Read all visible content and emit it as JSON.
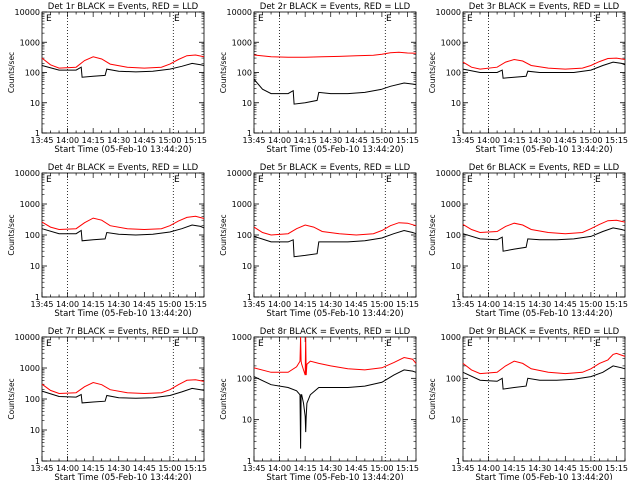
{
  "chart_data": [
    {
      "type": "line",
      "title": "Det 1r BLACK = Events, RED = LLD",
      "xlabel": "Start Time (05-Feb-10 13:44:20)",
      "ylabel": "Counts/sec",
      "x_units": "minutes from 13:45",
      "xlim": [
        0,
        95
      ],
      "ylim": [
        1,
        10000
      ],
      "yscale": "log",
      "x_tick_labels": [
        "13:45",
        "14:00",
        "14:15",
        "14:30",
        "14:45",
        "15:00",
        "15:15"
      ],
      "y_tick_labels": [
        "1",
        "10",
        "100",
        "1000",
        "10000"
      ],
      "flag_label": "E",
      "vlines_min": [
        15,
        77
      ],
      "series": [
        {
          "color": "#000000",
          "x": [
            0,
            10,
            20,
            23,
            23.5,
            30,
            37,
            38,
            45,
            55,
            65,
            75,
            82,
            88,
            93,
            95
          ],
          "y": [
            170,
            120,
            120,
            150,
            70,
            75,
            80,
            130,
            110,
            105,
            110,
            130,
            160,
            200,
            180,
            170
          ]
        },
        {
          "color": "#ff0000",
          "x": [
            0,
            5,
            10,
            20,
            25,
            30,
            35,
            40,
            50,
            60,
            70,
            75,
            80,
            85,
            90,
            95
          ],
          "y": [
            300,
            180,
            140,
            150,
            250,
            330,
            280,
            190,
            150,
            140,
            150,
            190,
            270,
            360,
            380,
            330
          ]
        }
      ]
    },
    {
      "type": "line",
      "title": "Det 2r BLACK = Events, RED = LLD",
      "xlabel": "Start Time (05-Feb-10 13:44:20)",
      "ylabel": "Counts/sec",
      "x_units": "minutes from 13:45",
      "xlim": [
        0,
        95
      ],
      "ylim": [
        1,
        10000
      ],
      "yscale": "log",
      "x_tick_labels": [
        "13:45",
        "14:00",
        "14:15",
        "14:30",
        "14:45",
        "15:00",
        "15:15"
      ],
      "y_tick_labels": [
        "1",
        "10",
        "100",
        "1000",
        "10000"
      ],
      "flag_label": "E",
      "vlines_min": [
        15,
        77
      ],
      "series": [
        {
          "color": "#000000",
          "x": [
            0,
            5,
            10,
            20,
            23,
            23.5,
            30,
            37,
            38,
            45,
            55,
            65,
            75,
            80,
            88,
            95
          ],
          "y": [
            60,
            28,
            20,
            20,
            25,
            9,
            10,
            12,
            22,
            20,
            20,
            22,
            28,
            35,
            45,
            40
          ]
        },
        {
          "color": "#ff0000",
          "x": [
            0,
            10,
            20,
            30,
            40,
            50,
            60,
            70,
            75,
            80,
            85,
            90,
            95
          ],
          "y": [
            380,
            330,
            320,
            320,
            330,
            340,
            360,
            370,
            400,
            450,
            470,
            440,
            430
          ]
        }
      ]
    },
    {
      "type": "line",
      "title": "Det 3r BLACK = Events, RED = LLD",
      "xlabel": "Start Time (05-Feb-10 13:44:20)",
      "ylabel": "Counts/sec",
      "x_units": "minutes from 13:45",
      "xlim": [
        0,
        95
      ],
      "ylim": [
        1,
        10000
      ],
      "yscale": "log",
      "x_tick_labels": [
        "13:45",
        "14:00",
        "14:15",
        "14:30",
        "14:45",
        "15:00",
        "15:15"
      ],
      "y_tick_labels": [
        "1",
        "10",
        "100",
        "1000",
        "10000"
      ],
      "flag_label": "E",
      "vlines_min": [
        15,
        77
      ],
      "series": [
        {
          "color": "#000000",
          "x": [
            0,
            10,
            20,
            23,
            23.5,
            30,
            37,
            38,
            45,
            55,
            65,
            75,
            82,
            88,
            93,
            95
          ],
          "y": [
            130,
            100,
            100,
            120,
            65,
            70,
            75,
            110,
            100,
            100,
            100,
            120,
            170,
            220,
            200,
            180
          ]
        },
        {
          "color": "#ff0000",
          "x": [
            0,
            5,
            10,
            20,
            25,
            30,
            35,
            40,
            50,
            60,
            70,
            75,
            80,
            85,
            90,
            95
          ],
          "y": [
            220,
            150,
            130,
            150,
            220,
            270,
            240,
            170,
            140,
            130,
            140,
            170,
            230,
            290,
            300,
            270
          ]
        }
      ]
    },
    {
      "type": "line",
      "title": "Det 4r BLACK = Events, RED = LLD",
      "xlabel": "Start Time (05-Feb-10 13:44:20)",
      "ylabel": "Counts/sec",
      "x_units": "minutes from 13:45",
      "xlim": [
        0,
        95
      ],
      "ylim": [
        1,
        10000
      ],
      "yscale": "log",
      "x_tick_labels": [
        "13:45",
        "14:00",
        "14:15",
        "14:30",
        "14:45",
        "15:00",
        "15:15"
      ],
      "y_tick_labels": [
        "1",
        "10",
        "100",
        "1000",
        "10000"
      ],
      "flag_label": "E",
      "vlines_min": [
        15,
        77
      ],
      "series": [
        {
          "color": "#000000",
          "x": [
            0,
            10,
            20,
            23,
            23.5,
            30,
            37,
            38,
            45,
            55,
            65,
            75,
            82,
            88,
            93,
            95
          ],
          "y": [
            160,
            110,
            110,
            140,
            65,
            70,
            75,
            120,
            105,
            100,
            105,
            125,
            160,
            210,
            190,
            170
          ]
        },
        {
          "color": "#ff0000",
          "x": [
            0,
            5,
            10,
            20,
            25,
            30,
            35,
            40,
            50,
            60,
            70,
            75,
            80,
            85,
            90,
            95
          ],
          "y": [
            260,
            180,
            150,
            160,
            250,
            350,
            300,
            200,
            160,
            150,
            160,
            200,
            280,
            370,
            400,
            340
          ]
        }
      ]
    },
    {
      "type": "line",
      "title": "Det 5r BLACK = Events, RED = LLD",
      "xlabel": "Start Time (05-Feb-10 13:44:20)",
      "ylabel": "Counts/sec",
      "x_units": "minutes from 13:45",
      "xlim": [
        0,
        95
      ],
      "ylim": [
        1,
        10000
      ],
      "yscale": "log",
      "x_tick_labels": [
        "13:45",
        "14:00",
        "14:15",
        "14:30",
        "14:45",
        "15:00",
        "15:15"
      ],
      "y_tick_labels": [
        "1",
        "10",
        "100",
        "1000",
        "10000"
      ],
      "flag_label": "E",
      "vlines_min": [
        15,
        77
      ],
      "series": [
        {
          "color": "#000000",
          "x": [
            0,
            10,
            20,
            23,
            23.5,
            30,
            37,
            38,
            45,
            55,
            65,
            75,
            82,
            88,
            93,
            95
          ],
          "y": [
            90,
            60,
            60,
            70,
            20,
            22,
            25,
            60,
            60,
            60,
            65,
            80,
            110,
            140,
            120,
            110
          ]
        },
        {
          "color": "#ff0000",
          "x": [
            0,
            5,
            10,
            20,
            25,
            30,
            35,
            40,
            50,
            60,
            70,
            75,
            80,
            85,
            90,
            95
          ],
          "y": [
            180,
            120,
            100,
            110,
            160,
            210,
            180,
            130,
            110,
            100,
            110,
            140,
            200,
            250,
            240,
            200
          ]
        }
      ]
    },
    {
      "type": "line",
      "title": "Det 6r BLACK = Events, RED = LLD",
      "xlabel": "Start Time (05-Feb-10 13:44:20)",
      "ylabel": "Counts/sec",
      "x_units": "minutes from 13:45",
      "xlim": [
        0,
        95
      ],
      "ylim": [
        1,
        10000
      ],
      "yscale": "log",
      "x_tick_labels": [
        "13:45",
        "14:00",
        "14:15",
        "14:30",
        "14:45",
        "15:00",
        "15:15"
      ],
      "y_tick_labels": [
        "1",
        "10",
        "100",
        "1000",
        "10000"
      ],
      "flag_label": "E",
      "vlines_min": [
        15,
        77
      ],
      "series": [
        {
          "color": "#000000",
          "x": [
            0,
            10,
            20,
            23,
            23.5,
            30,
            37,
            38,
            45,
            55,
            65,
            75,
            82,
            88,
            93,
            95
          ],
          "y": [
            110,
            75,
            70,
            85,
            30,
            35,
            40,
            75,
            70,
            70,
            75,
            90,
            130,
            170,
            150,
            140
          ]
        },
        {
          "color": "#ff0000",
          "x": [
            0,
            5,
            10,
            20,
            25,
            30,
            35,
            40,
            50,
            60,
            70,
            75,
            80,
            85,
            90,
            95
          ],
          "y": [
            220,
            150,
            120,
            130,
            190,
            240,
            210,
            150,
            120,
            110,
            120,
            160,
            220,
            290,
            300,
            260
          ]
        }
      ]
    },
    {
      "type": "line",
      "title": "Det 7r BLACK = Events, RED = LLD",
      "xlabel": "Start Time (05-Feb-10 13:44:20)",
      "ylabel": "Counts/sec",
      "x_units": "minutes from 13:45",
      "xlim": [
        0,
        95
      ],
      "ylim": [
        1,
        10000
      ],
      "yscale": "log",
      "x_tick_labels": [
        "13:45",
        "14:00",
        "14:15",
        "14:30",
        "14:45",
        "15:00",
        "15:15"
      ],
      "y_tick_labels": [
        "1",
        "10",
        "100",
        "1000",
        "10000"
      ],
      "flag_label": "E",
      "vlines_min": [
        15,
        77
      ],
      "series": [
        {
          "color": "#000000",
          "x": [
            0,
            10,
            20,
            23,
            23.5,
            30,
            37,
            38,
            45,
            55,
            65,
            75,
            82,
            88,
            93,
            95
          ],
          "y": [
            180,
            120,
            115,
            140,
            75,
            80,
            85,
            130,
            110,
            105,
            110,
            130,
            170,
            220,
            200,
            190
          ]
        },
        {
          "color": "#ff0000",
          "x": [
            0,
            5,
            10,
            20,
            25,
            30,
            35,
            40,
            50,
            60,
            70,
            75,
            80,
            85,
            90,
            95
          ],
          "y": [
            300,
            190,
            150,
            160,
            250,
            340,
            290,
            200,
            160,
            150,
            160,
            200,
            290,
            400,
            420,
            370
          ]
        }
      ]
    },
    {
      "type": "line",
      "title": "Det 8r BLACK = Events, RED = LLD",
      "xlabel": "Start Time (05-Feb-10 13:44:20)",
      "ylabel": "Counts/sec",
      "x_units": "minutes from 13:45",
      "xlim": [
        0,
        95
      ],
      "ylim": [
        1,
        1000
      ],
      "yscale": "log",
      "x_tick_labels": [
        "13:45",
        "14:00",
        "14:15",
        "14:30",
        "14:45",
        "15:00",
        "15:15"
      ],
      "y_tick_labels": [
        "1",
        "10",
        "100",
        "1000"
      ],
      "flag_label": "E",
      "vlines_min": [
        15,
        77
      ],
      "series": [
        {
          "color": "#000000",
          "x": [
            0,
            10,
            20,
            25,
            27,
            27.3,
            27.6,
            28,
            29,
            30,
            30.3,
            30.6,
            31,
            33,
            38,
            45,
            55,
            65,
            75,
            82,
            88,
            93,
            95
          ],
          "y": [
            110,
            70,
            60,
            50,
            40,
            2,
            40,
            40,
            25,
            12,
            5,
            12,
            25,
            40,
            60,
            60,
            60,
            65,
            80,
            120,
            160,
            150,
            140
          ]
        },
        {
          "color": "#ff0000",
          "x": [
            0,
            10,
            20,
            25,
            27,
            27.3,
            27.6,
            28,
            29,
            30,
            30.3,
            30.6,
            31,
            33,
            38,
            45,
            55,
            65,
            75,
            82,
            88,
            93,
            95
          ],
          "y": [
            180,
            140,
            140,
            190,
            260,
            1000,
            260,
            220,
            160,
            120,
            1000,
            120,
            220,
            260,
            230,
            200,
            170,
            160,
            180,
            240,
            320,
            290,
            230
          ]
        }
      ]
    },
    {
      "type": "line",
      "title": "Det 9r BLACK = Events, RED = LLD",
      "xlabel": "Start Time (05-Feb-10 13:44:20)",
      "ylabel": "Counts/sec",
      "x_units": "minutes from 13:45",
      "xlim": [
        0,
        95
      ],
      "ylim": [
        1,
        1000
      ],
      "yscale": "log",
      "x_tick_labels": [
        "13:45",
        "14:00",
        "14:15",
        "14:30",
        "14:45",
        "15:00",
        "15:15"
      ],
      "y_tick_labels": [
        "1",
        "10",
        "100",
        "1000"
      ],
      "flag_label": "E",
      "vlines_min": [
        15,
        77
      ],
      "series": [
        {
          "color": "#000000",
          "x": [
            0,
            10,
            20,
            23,
            23.5,
            30,
            37,
            38,
            45,
            55,
            65,
            75,
            82,
            88,
            93,
            95
          ],
          "y": [
            140,
            90,
            85,
            100,
            55,
            60,
            65,
            100,
            90,
            90,
            95,
            110,
            140,
            200,
            180,
            170
          ]
        },
        {
          "color": "#ff0000",
          "x": [
            0,
            5,
            10,
            20,
            25,
            30,
            35,
            40,
            50,
            60,
            70,
            75,
            80,
            85,
            88,
            90,
            95
          ],
          "y": [
            230,
            160,
            130,
            140,
            200,
            260,
            230,
            170,
            140,
            130,
            140,
            170,
            230,
            280,
            380,
            400,
            340
          ]
        }
      ]
    }
  ]
}
